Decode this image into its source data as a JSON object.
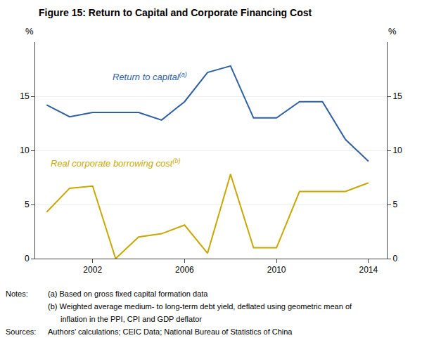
{
  "chart_data": {
    "type": "line",
    "title": "Figure 15: Return to Capital and Corporate Financing Cost",
    "x": [
      2000,
      2001,
      2002,
      2003,
      2004,
      2005,
      2006,
      2007,
      2008,
      2009,
      2010,
      2011,
      2012,
      2013,
      2014
    ],
    "series": [
      {
        "name": "Return to capital",
        "note_mark": "(a)",
        "color": "#2E5FA3",
        "values": [
          14.2,
          13.1,
          13.5,
          13.5,
          13.5,
          12.8,
          14.5,
          17.2,
          17.8,
          13.0,
          13.0,
          14.5,
          14.5,
          11.0,
          9.0
        ]
      },
      {
        "name": "Real corporate borrowing cost",
        "note_mark": "(b)",
        "color": "#C8A800",
        "values": [
          4.3,
          6.5,
          6.7,
          0.0,
          2.0,
          2.3,
          3.1,
          0.5,
          7.8,
          1.0,
          1.0,
          6.2,
          6.2,
          6.2,
          7.0
        ]
      }
    ],
    "xlim": [
      1999.5,
      2014.8
    ],
    "xticks": [
      2002,
      2006,
      2010,
      2014
    ],
    "ylim": [
      0,
      20
    ],
    "yticks": [
      0,
      5,
      10,
      15
    ],
    "y2lim": [
      0,
      20
    ],
    "y2ticks": [
      0,
      5,
      10,
      15
    ],
    "ylabel": "%",
    "y2label": "%",
    "grid": true,
    "legend": false,
    "notes": {
      "label": "Notes:",
      "lines": [
        "(a) Based on gross fixed capital formation data",
        "(b) Weighted average medium- to long-term debt yield, deflated using geometric mean of",
        "inflation in the PPI, CPI and GDP deflator"
      ]
    },
    "sources": {
      "label": "Sources:",
      "text": "Authors’ calculations; CEIC Data; National Bureau of Statistics of China"
    }
  }
}
